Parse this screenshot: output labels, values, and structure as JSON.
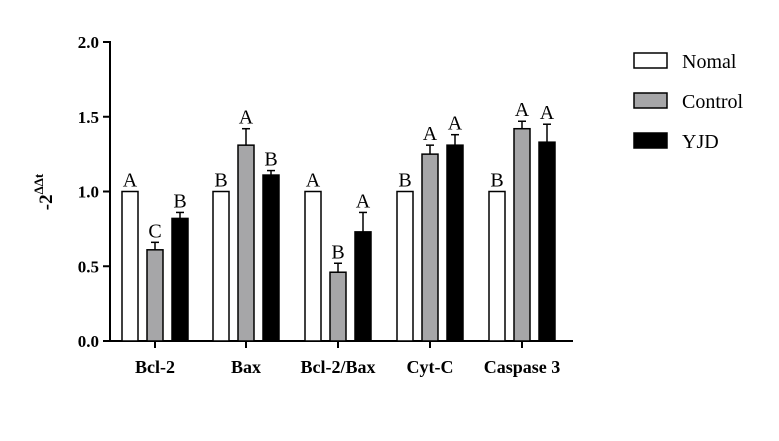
{
  "chart_data": {
    "type": "bar",
    "title": "",
    "xlabel": "",
    "ylabel": {
      "base": "-2",
      "exponent": "ΔΔt"
    },
    "ylim": [
      0,
      2.0
    ],
    "yticks": [
      "0.0",
      "0.5",
      "1.0",
      "1.5",
      "2.0"
    ],
    "categories": [
      "Bcl-2",
      "Bax",
      "Bcl-2/Bax",
      "Cyt-C",
      "Caspase 3"
    ],
    "series": [
      {
        "name": "Nomal",
        "color": "#ffffff",
        "values": [
          1.0,
          1.0,
          1.0,
          1.0,
          1.0
        ],
        "errors": [
          0,
          0,
          0,
          0,
          0
        ],
        "labels": [
          "A",
          "B",
          "A",
          "B",
          "B"
        ]
      },
      {
        "name": "Control",
        "color": "#a6a6a8",
        "values": [
          0.61,
          1.31,
          0.46,
          1.25,
          1.42
        ],
        "errors": [
          0.05,
          0.11,
          0.06,
          0.06,
          0.05
        ],
        "labels": [
          "C",
          "A",
          "B",
          "A",
          "A"
        ]
      },
      {
        "name": "YJD",
        "color": "#000000",
        "values": [
          0.82,
          1.11,
          0.73,
          1.31,
          1.33
        ],
        "errors": [
          0.04,
          0.03,
          0.13,
          0.07,
          0.12
        ],
        "labels": [
          "B",
          "B",
          "A",
          "A",
          "A"
        ]
      }
    ],
    "legend_position": "top-right"
  }
}
